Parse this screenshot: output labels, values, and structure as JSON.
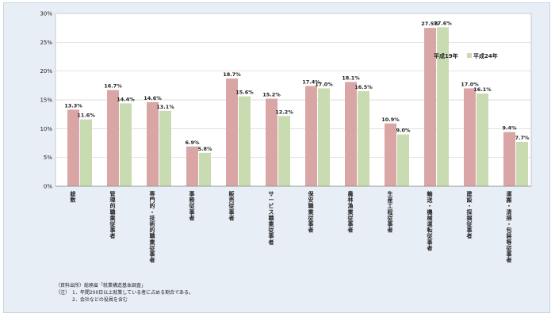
{
  "chart_data": {
    "type": "bar",
    "categories": [
      "総数",
      "管理的職業従事者",
      "専門的・技術的職業従事者",
      "事務従事者",
      "販売従事者",
      "サービス職業従事者",
      "保安職業従事者",
      "農林漁業従事者",
      "生産工程従事者",
      "輸送・機械運転従事者",
      "建設・採掘従事者",
      "運搬・清掃・包装等従事者"
    ],
    "series": [
      {
        "name": "平成19年",
        "values": [
          13.3,
          16.7,
          14.6,
          6.9,
          18.7,
          15.2,
          17.4,
          18.1,
          10.9,
          27.5,
          17.0,
          9.4
        ],
        "color": "#d9a5a5"
      },
      {
        "name": "平成24年",
        "values": [
          11.6,
          14.4,
          13.1,
          5.8,
          15.6,
          12.2,
          17.0,
          16.5,
          9.0,
          27.6,
          16.1,
          7.7
        ],
        "color": "#c9dbb0"
      }
    ],
    "value_labels": [
      [
        "13.3%",
        "16.7%",
        "14.6%",
        "6.9%",
        "18.7%",
        "15.2%",
        "17.4%",
        "18.1%",
        "10.9%",
        "27.5%",
        "17.0%",
        "9.4%"
      ],
      [
        "11.6%",
        "14.4%",
        "13.1%",
        "5.8%",
        "15.6%",
        "12.2%",
        "17.0%",
        "16.5%",
        "9.0%",
        "27.6%",
        "16.1%",
        "7.7%"
      ]
    ],
    "y_ticks": [
      "0%",
      "5%",
      "10%",
      "15%",
      "20%",
      "25%",
      "30%"
    ],
    "ylim": [
      0,
      30
    ],
    "grid": true,
    "legend_position": "top-right"
  },
  "notes": {
    "source": "（資料出所）総務省「就業構造基本調査」",
    "note1": "（注）　1．年間200日以上就業している者に占める割合である。",
    "note2": "2．会社などの役員を含む"
  }
}
